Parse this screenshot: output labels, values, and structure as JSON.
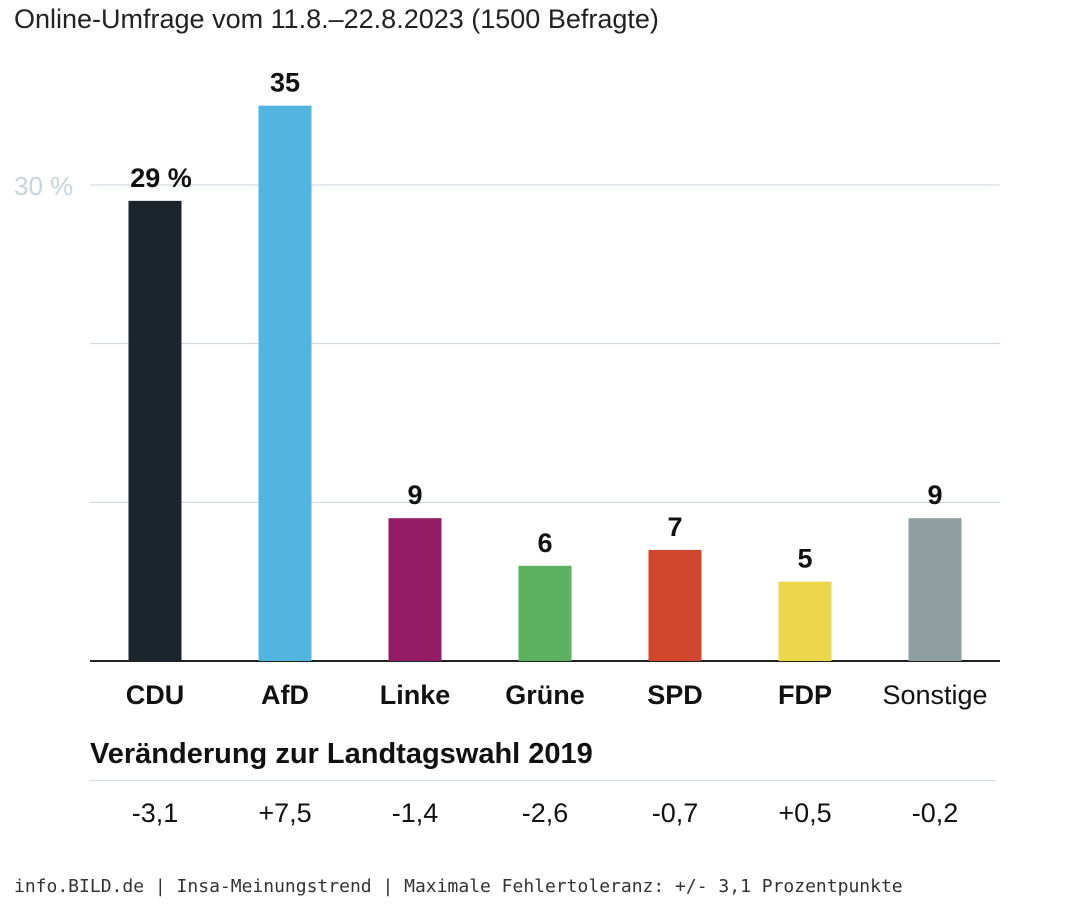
{
  "chart_data": {
    "type": "bar",
    "subtitle": "Online-Umfrage vom 11.8.–22.8.2023 (1500 Befragte)",
    "categories": [
      "CDU",
      "AfD",
      "Linke",
      "Grüne",
      "SPD",
      "FDP",
      "Sonstige"
    ],
    "values": [
      29,
      35,
      9,
      6,
      7,
      5,
      9
    ],
    "value_labels": [
      "29 %",
      "35",
      "9",
      "6",
      "7",
      "5",
      "9"
    ],
    "colors": [
      "#1d252c",
      "#52b5df",
      "#951b64",
      "#5cb060",
      "#d0462f",
      "#ecd64a",
      "#8f9ea1"
    ],
    "category_bold": [
      true,
      true,
      true,
      true,
      true,
      true,
      false
    ],
    "ylim": [
      0,
      30
    ],
    "y_ticks": [
      0,
      10,
      20,
      30
    ],
    "y_tick_label": "30 %",
    "grid": true,
    "changes_heading": "Veränderung zur Landtagswahl 2019",
    "changes": [
      "-3,1",
      "+7,5",
      "-1,4",
      "-2,6",
      "-0,7",
      "+0,5",
      "-0,2"
    ]
  },
  "footer": "info.BILD.de | Insa-Meinungstrend | Maximale Fehlertoleranz: +/- 3,1 Prozentpunkte"
}
